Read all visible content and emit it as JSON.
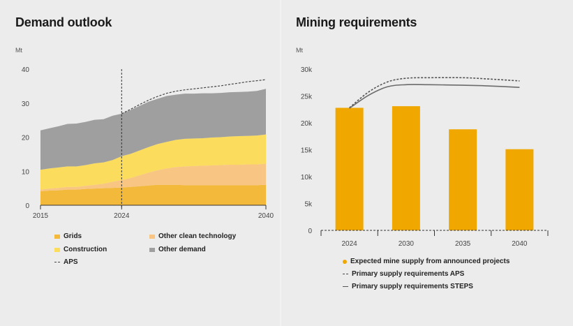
{
  "chart_data": [
    {
      "type": "area",
      "title": "Demand outlook",
      "ylabel": "Mt",
      "ylim": [
        0,
        40
      ],
      "yticks": [
        "0",
        "10",
        "20",
        "30",
        "40"
      ],
      "xticks": [
        "2015",
        "2024",
        "2040"
      ],
      "x": [
        2015,
        2016,
        2017,
        2018,
        2019,
        2020,
        2021,
        2022,
        2023,
        2024,
        2025,
        2026,
        2027,
        2028,
        2029,
        2030,
        2031,
        2032,
        2033,
        2034,
        2035,
        2036,
        2037,
        2038,
        2039,
        2040
      ],
      "series": [
        {
          "name": "Grids",
          "color": "#f3b93b",
          "values": [
            4.1,
            4.3,
            4.4,
            4.6,
            4.6,
            4.8,
            4.9,
            5.0,
            5.1,
            5.2,
            5.4,
            5.6,
            5.8,
            6.0,
            6.0,
            6.0,
            5.9,
            5.9,
            5.9,
            5.9,
            5.9,
            5.9,
            5.9,
            5.9,
            5.9,
            6.0
          ]
        },
        {
          "name": "Other clean technology",
          "color": "#f8c682",
          "values": [
            0.5,
            0.6,
            0.7,
            0.8,
            0.8,
            0.9,
            1.1,
            1.3,
            1.8,
            2.2,
            2.6,
            3.2,
            3.8,
            4.3,
            4.8,
            5.2,
            5.5,
            5.6,
            5.7,
            5.8,
            5.9,
            6.0,
            6.0,
            6.1,
            6.1,
            6.2
          ]
        },
        {
          "name": "Construction",
          "color": "#fbdc5c",
          "values": [
            5.8,
            5.9,
            6.0,
            6.0,
            6.0,
            6.1,
            6.3,
            6.3,
            6.4,
            7.0,
            7.1,
            7.3,
            7.5,
            7.7,
            7.8,
            8.0,
            8.1,
            8.1,
            8.1,
            8.2,
            8.2,
            8.3,
            8.4,
            8.4,
            8.5,
            8.6
          ]
        },
        {
          "name": "Other demand",
          "color": "#9f9f9f",
          "values": [
            11.6,
            11.8,
            12.1,
            12.5,
            12.6,
            12.7,
            12.8,
            12.7,
            13.0,
            12.5,
            12.9,
            13.1,
            13.3,
            13.3,
            13.5,
            13.3,
            13.3,
            13.2,
            13.2,
            13.0,
            13.0,
            13.0,
            13.0,
            13.0,
            13.1,
            13.4
          ]
        }
      ],
      "aps": {
        "name": "APS",
        "x": [
          2024,
          2025,
          2026,
          2027,
          2028,
          2029,
          2030,
          2031,
          2032,
          2033,
          2034,
          2035,
          2036,
          2037,
          2038,
          2039,
          2040
        ],
        "values": [
          26.9,
          28.2,
          29.6,
          30.9,
          32.0,
          32.9,
          33.5,
          33.9,
          34.2,
          34.5,
          34.8,
          35.1,
          35.5,
          35.9,
          36.3,
          36.6,
          36.9
        ]
      },
      "marker_year": "2024",
      "legend": [
        "Grids",
        "Other clean technology",
        "Construction",
        "Other demand",
        "APS"
      ]
    },
    {
      "type": "bar",
      "title": "Mining requirements",
      "ylabel": "Mt",
      "ylim": [
        0,
        30000
      ],
      "yticks": [
        "0",
        "5k",
        "10k",
        "15k",
        "20k",
        "25k",
        "30k"
      ],
      "categories": [
        "2024",
        "2030",
        "2035",
        "2040"
      ],
      "series": [
        {
          "name": "Expected mine supply from announced projects",
          "color": "#f0a800",
          "values": [
            22800,
            23100,
            18800,
            15100
          ]
        }
      ],
      "lines": [
        {
          "name": "Primary supply requirements APS",
          "style": "dashed",
          "color": "#555555",
          "x": [
            2024,
            2026,
            2028,
            2030,
            2032,
            2035,
            2037,
            2040
          ],
          "values": [
            22800,
            25700,
            27600,
            28300,
            28400,
            28400,
            28200,
            27800
          ]
        },
        {
          "name": "Primary supply requirements STEPS",
          "style": "solid",
          "color": "#6b6b6b",
          "x": [
            2024,
            2026,
            2028,
            2030,
            2032,
            2035,
            2037,
            2040
          ],
          "values": [
            22700,
            25100,
            26700,
            27100,
            27100,
            27000,
            26900,
            26600
          ]
        }
      ]
    }
  ],
  "colors": {
    "accent_bar": "#f0a800",
    "axis": "#333333"
  }
}
